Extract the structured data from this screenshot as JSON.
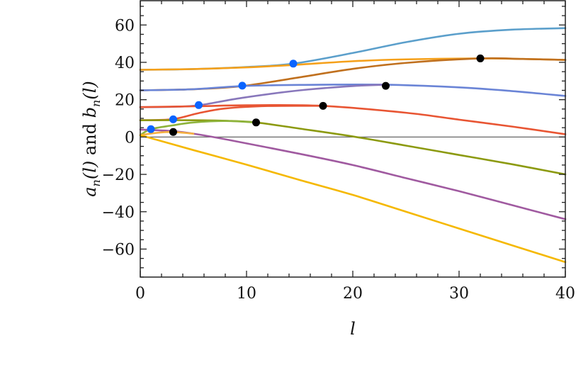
{
  "chart_data": {
    "type": "line",
    "title": "",
    "xlabel": "l",
    "ylabel": "a_n(l) and b_n(l)",
    "ylabel_parts": {
      "a": "a",
      "n1": "n",
      "l1": "(l)",
      "and": " and ",
      "b": "b",
      "n2": "n",
      "l2": "(l)"
    },
    "xlim": [
      0,
      40
    ],
    "ylim": [
      -75,
      73
    ],
    "xticks": [
      0,
      10,
      20,
      30,
      40
    ],
    "yticks": [
      -60,
      -40,
      -20,
      0,
      20,
      40,
      60
    ],
    "xtick_labels": [
      "0",
      "10",
      "20",
      "30",
      "40"
    ],
    "ytick_labels": [
      "−60",
      "−40",
      "−20",
      "0",
      "20",
      "40",
      "60"
    ],
    "grid": false,
    "zero_line": true,
    "series": [
      {
        "color": "#5B9FCB",
        "points": [
          [
            0,
            36
          ],
          [
            5,
            36.4
          ],
          [
            10,
            37.5
          ],
          [
            14.4,
            39.3
          ],
          [
            20,
            45
          ],
          [
            25,
            50.8
          ],
          [
            30,
            55.3
          ],
          [
            35,
            57.5
          ],
          [
            40,
            58.3
          ]
        ]
      },
      {
        "color": "#F5A01A",
        "points": [
          [
            0,
            36
          ],
          [
            5,
            36.4
          ],
          [
            10,
            37.3
          ],
          [
            14.4,
            38.6
          ],
          [
            20,
            40.6
          ],
          [
            25,
            41.6
          ],
          [
            32,
            42.1
          ],
          [
            36,
            41.8
          ],
          [
            40,
            41.3
          ]
        ]
      },
      {
        "color": "#C0701E",
        "points": [
          [
            0,
            25
          ],
          [
            5,
            25.6
          ],
          [
            9.6,
            27.3
          ],
          [
            15,
            32
          ],
          [
            20,
            36.5
          ],
          [
            25,
            39.7
          ],
          [
            32,
            42.1
          ],
          [
            36,
            41.8
          ],
          [
            40,
            41.3
          ]
        ]
      },
      {
        "color": "#6A84D6",
        "points": [
          [
            0,
            25
          ],
          [
            5,
            25.6
          ],
          [
            9.6,
            27.3
          ],
          [
            15,
            27.9
          ],
          [
            23,
            28
          ],
          [
            30,
            26.6
          ],
          [
            35,
            24.6
          ],
          [
            40,
            22
          ]
        ]
      },
      {
        "color": "#8877BB",
        "points": [
          [
            0,
            16
          ],
          [
            3,
            16.2
          ],
          [
            5.5,
            17
          ],
          [
            9.6,
            21
          ],
          [
            15,
            25
          ],
          [
            20,
            27.3
          ],
          [
            23,
            28
          ]
        ]
      },
      {
        "color": "#E85533",
        "points": [
          [
            0,
            16
          ],
          [
            5.5,
            16.5
          ],
          [
            10,
            17
          ],
          [
            17,
            16.7
          ],
          [
            25,
            13
          ],
          [
            30,
            9.3
          ],
          [
            35,
            5.6
          ],
          [
            40,
            1.5
          ]
        ]
      },
      {
        "color": "#E85533",
        "points": [
          [
            0,
            9
          ],
          [
            3,
            9.5
          ],
          [
            5.5,
            12.8
          ],
          [
            8,
            15.3
          ],
          [
            12,
            16.6
          ],
          [
            17,
            16.7
          ]
        ]
      },
      {
        "color": "#8C9A10",
        "points": [
          [
            0,
            9
          ],
          [
            5,
            9
          ],
          [
            8,
            8.7
          ],
          [
            10.9,
            7.8
          ],
          [
            15,
            4.5
          ],
          [
            20,
            0.3
          ],
          [
            25,
            -4.6
          ],
          [
            30,
            -9.6
          ],
          [
            35,
            -14.6
          ],
          [
            40,
            -20
          ]
        ]
      },
      {
        "color": "#8DB33A",
        "points": [
          [
            0,
            1
          ],
          [
            1,
            4.2
          ],
          [
            3,
            6.2
          ],
          [
            5,
            7.8
          ],
          [
            8,
            8.6
          ],
          [
            10.9,
            7.8
          ]
        ]
      },
      {
        "color": "#A05AA0",
        "points": [
          [
            0,
            4
          ],
          [
            3,
            3.2
          ],
          [
            5,
            1.8
          ],
          [
            8,
            -1.2
          ],
          [
            15,
            -9
          ],
          [
            20,
            -15
          ],
          [
            25,
            -22
          ],
          [
            30,
            -29
          ],
          [
            35,
            -36.5
          ],
          [
            40,
            -44
          ]
        ]
      },
      {
        "color": "#F5B040",
        "points": [
          [
            0,
            1
          ],
          [
            1.5,
            2.2
          ],
          [
            3,
            2.7
          ],
          [
            5,
            1.8
          ]
        ]
      },
      {
        "color": "#F5B800",
        "points": [
          [
            0,
            1
          ],
          [
            5,
            -7
          ],
          [
            10,
            -14.8
          ],
          [
            15,
            -23
          ],
          [
            20,
            -31
          ],
          [
            25,
            -40
          ],
          [
            30,
            -49
          ],
          [
            35,
            -58
          ],
          [
            40,
            -67
          ]
        ]
      }
    ],
    "markers": [
      {
        "color": "#0A64FF",
        "points": [
          [
            1,
            4.2
          ],
          [
            3.1,
            9.5
          ],
          [
            5.5,
            17.1
          ],
          [
            9.6,
            27.5
          ],
          [
            14.4,
            39.3
          ]
        ]
      },
      {
        "color": "#000000",
        "points": [
          [
            3.1,
            2.7
          ],
          [
            10.9,
            7.8
          ],
          [
            17.2,
            16.7
          ],
          [
            23.1,
            27.4
          ],
          [
            32,
            42.1
          ]
        ]
      }
    ]
  }
}
